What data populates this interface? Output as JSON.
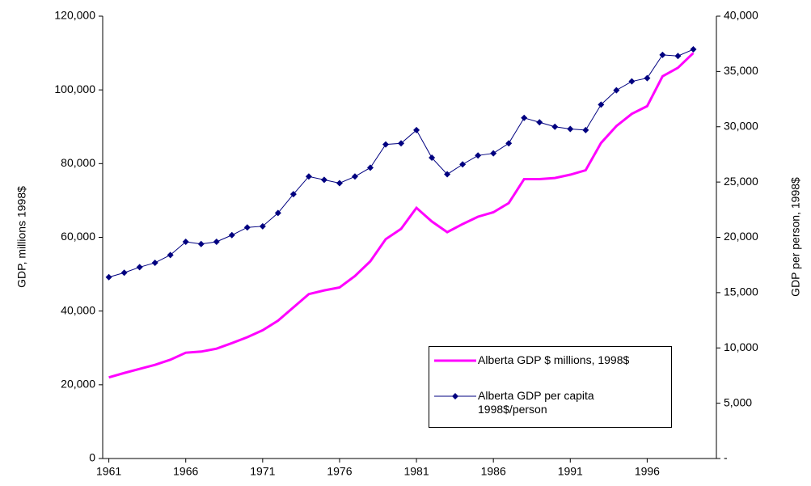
{
  "chart_data": {
    "type": "line",
    "ylabel": "GDP, millions 1998$",
    "y2label": "GDP per person, 1998$",
    "x": [
      1961,
      1962,
      1963,
      1964,
      1965,
      1966,
      1967,
      1968,
      1969,
      1970,
      1971,
      1972,
      1973,
      1974,
      1975,
      1976,
      1977,
      1978,
      1979,
      1980,
      1981,
      1982,
      1983,
      1984,
      1985,
      1986,
      1987,
      1988,
      1989,
      1990,
      1991,
      1992,
      1993,
      1994,
      1995,
      1996,
      1997,
      1998,
      1999
    ],
    "xlim": [
      1960.6,
      2000.5
    ],
    "xticks": [
      1961,
      1966,
      1971,
      1976,
      1981,
      1986,
      1991,
      1996
    ],
    "ylim": [
      0,
      120000
    ],
    "yticks": [
      0,
      {
        "value": 20000,
        "label": "20,000"
      },
      {
        "value": 40000,
        "label": "40,000"
      },
      {
        "value": 60000,
        "label": "60,000"
      },
      {
        "value": 80000,
        "label": "80,000"
      },
      {
        "value": 100000,
        "label": "100,000"
      },
      {
        "value": 120000,
        "label": "120,000"
      }
    ],
    "y2lim": [
      0,
      40000
    ],
    "y2ticks": [
      {
        "value": 0,
        "label": "-"
      },
      {
        "value": 5000,
        "label": "5,000"
      },
      {
        "value": 10000,
        "label": "10,000"
      },
      {
        "value": 15000,
        "label": "15,000"
      },
      {
        "value": 20000,
        "label": "20,000"
      },
      {
        "value": 25000,
        "label": "25,000"
      },
      {
        "value": 30000,
        "label": "30,000"
      },
      {
        "value": 35000,
        "label": "35,000"
      },
      {
        "value": 40000,
        "label": "40,000"
      }
    ],
    "series": [
      {
        "name": "Alberta GDP $ millions, 1998$",
        "color": "#ff00ff",
        "markers": false,
        "values": [
          22000,
          23200,
          24300,
          25400,
          26800,
          28700,
          29000,
          29800,
          31300,
          32900,
          34800,
          37400,
          41000,
          44600,
          45600,
          46400,
          49500,
          53500,
          59500,
          62300,
          68000,
          64300,
          61400,
          63600,
          65600,
          66800,
          69300,
          75800,
          75800,
          76100,
          77000,
          78200,
          85600,
          90200,
          93500,
          95600,
          103700,
          106000,
          110000
        ]
      },
      {
        "name": "Alberta GDP per capita 1998$/person",
        "color": "#000080",
        "markers": true,
        "axis": "y2",
        "values": [
          16400,
          16800,
          17300,
          17700,
          18400,
          19600,
          19400,
          19600,
          20200,
          20900,
          21000,
          22200,
          23900,
          25500,
          25200,
          24900,
          25500,
          26300,
          28400,
          28500,
          29700,
          27200,
          25700,
          26600,
          27400,
          27600,
          28500,
          30800,
          30400,
          30000,
          29800,
          29700,
          32000,
          33300,
          34100,
          34400,
          36500,
          36400,
          37000
        ]
      }
    ]
  }
}
